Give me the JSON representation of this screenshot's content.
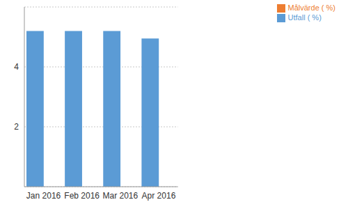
{
  "chart_data": {
    "type": "bar",
    "categories": [
      "Jan 2016",
      "Feb 2016",
      "Mar 2016",
      "Apr 2016"
    ],
    "series": [
      {
        "name": "Utfall ( %)",
        "color": "#5b9bd5",
        "values": [
          5.2,
          5.2,
          5.2,
          4.95
        ]
      },
      {
        "name": "Målvärde ( %)",
        "color": "#ed7d31",
        "values": [
          null,
          null,
          null,
          null
        ]
      }
    ],
    "ylim": [
      0,
      6
    ],
    "yticks": [
      2,
      4
    ],
    "grid": true,
    "legend": "right"
  }
}
